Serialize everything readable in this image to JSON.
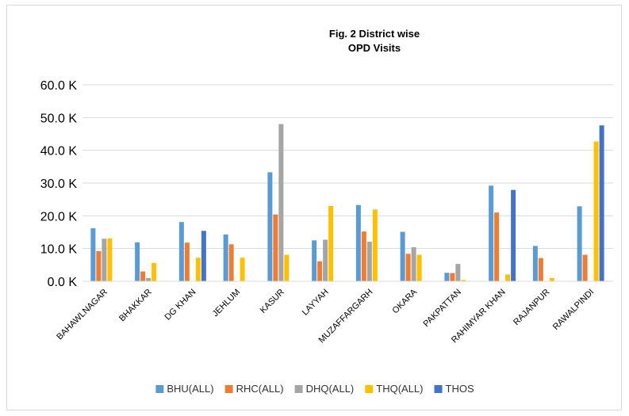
{
  "chart_data": {
    "type": "bar",
    "title": "Fig. 2 District wise",
    "subtitle": "OPD Visits",
    "xlabel": "",
    "ylabel": "",
    "ylim": [
      0,
      60000
    ],
    "yticks": [
      0,
      10000,
      20000,
      30000,
      40000,
      50000,
      60000
    ],
    "ytick_labels": [
      "0.0 K",
      "10.0 K",
      "20.0 K",
      "30.0 K",
      "40.0 K",
      "50.0 K",
      "60.0 K"
    ],
    "grid": true,
    "legend_position": "bottom",
    "categories": [
      "BAHAWLNAGAR",
      "BHAKKAR",
      "DG KHAN",
      "JEHLUM",
      "KASUR",
      "LAYYAH",
      "MUZAFFARGARH",
      "OKARA",
      "PAKPATTAN",
      "RAHIMYAR KHAN",
      "RAJANPUR",
      "RAWALPINDI"
    ],
    "series": [
      {
        "name": "BHU(ALL)",
        "color": "#5b9bd5",
        "values": [
          16200,
          11900,
          18100,
          14300,
          33300,
          12500,
          23300,
          15100,
          2600,
          29200,
          10800,
          22900
        ]
      },
      {
        "name": "RHC(ALL)",
        "color": "#ed7d31",
        "values": [
          9200,
          3000,
          11800,
          11300,
          20400,
          6100,
          15200,
          8400,
          2500,
          21000,
          7100,
          8100
        ]
      },
      {
        "name": "DHQ(ALL)",
        "color": "#a5a5a5",
        "values": [
          13000,
          1000,
          0,
          0,
          48000,
          12700,
          12100,
          10400,
          5300,
          0,
          0,
          0
        ]
      },
      {
        "name": "THQ(ALL)",
        "color": "#ffc000",
        "values": [
          13100,
          5600,
          7200,
          7200,
          8100,
          23000,
          21900,
          8100,
          400,
          2100,
          1000,
          42700
        ]
      },
      {
        "name": "THOS",
        "color": "#4472c4",
        "values": [
          0,
          0,
          15400,
          0,
          0,
          0,
          0,
          0,
          0,
          27900,
          0,
          47600
        ]
      }
    ]
  }
}
